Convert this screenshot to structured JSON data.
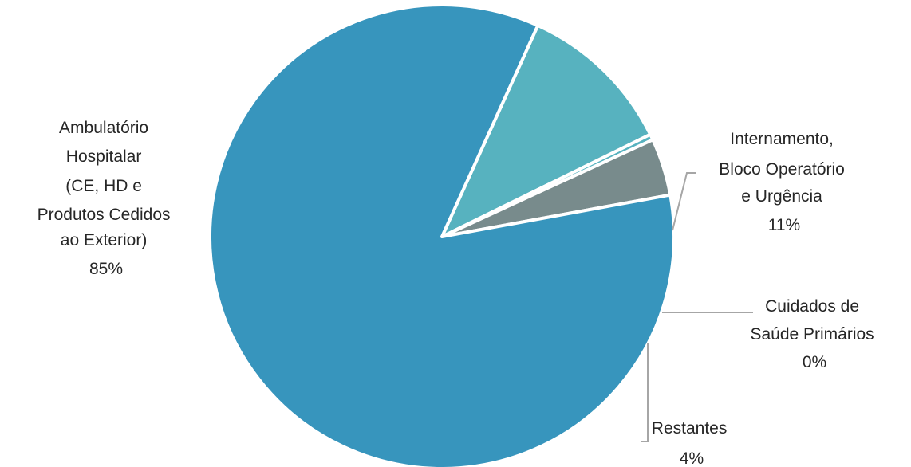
{
  "chart_data": {
    "type": "pie",
    "title": "",
    "start_angle_deg": 65.6,
    "slices": [
      {
        "lines": [
          "Internamento,",
          "Bloco Operatório",
          "e Urgência"
        ],
        "percent_label": "11%",
        "value": 11,
        "color": "#57b2bf"
      },
      {
        "lines": [
          "Cuidados de",
          "Saúde Primários"
        ],
        "percent_label": "0%",
        "value": 0.4,
        "color": "#57b2bf"
      },
      {
        "lines": [
          "Restantes"
        ],
        "percent_label": "4%",
        "value": 4,
        "color": "#788b8c"
      },
      {
        "lines": [
          "Ambulatório",
          "Hospitalar",
          "(CE, HD e",
          "Produtos Cedidos",
          "ao Exterior)"
        ],
        "percent_label": "85%",
        "value": 85,
        "color": "#3795bd"
      }
    ]
  }
}
